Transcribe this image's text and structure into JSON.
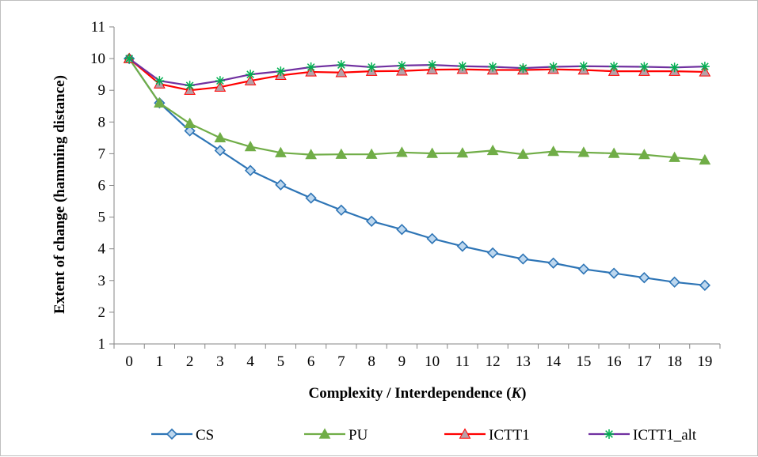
{
  "chart_data": {
    "type": "line",
    "xlabel_main": "Complexity / Interdependence (",
    "xlabel_var": "K",
    "xlabel_close": ")",
    "ylabel": "Extent of change (hamming distance)",
    "x": [
      0,
      1,
      2,
      3,
      4,
      5,
      6,
      7,
      8,
      9,
      10,
      11,
      12,
      13,
      14,
      15,
      16,
      17,
      18,
      19
    ],
    "ylim": [
      1,
      11
    ],
    "yticks": [
      1,
      2,
      3,
      4,
      5,
      6,
      7,
      8,
      9,
      10,
      11
    ],
    "grid": false,
    "legend_position": "bottom",
    "series": [
      {
        "name": "CS",
        "color": "#2e75b6",
        "fill": "#bdd7ee",
        "marker": "diamond",
        "values": [
          10.0,
          8.6,
          7.72,
          7.1,
          6.47,
          6.02,
          5.6,
          5.22,
          4.87,
          4.61,
          4.32,
          4.08,
          3.87,
          3.68,
          3.55,
          3.36,
          3.23,
          3.09,
          2.95,
          2.85
        ]
      },
      {
        "name": "PU",
        "color": "#70ad47",
        "fill": "#70ad47",
        "marker": "triangle",
        "values": [
          10.0,
          8.6,
          7.95,
          7.5,
          7.22,
          7.03,
          6.97,
          6.98,
          6.98,
          7.04,
          7.01,
          7.02,
          7.1,
          6.98,
          7.07,
          7.04,
          7.01,
          6.97,
          6.88,
          6.8
        ]
      },
      {
        "name": "ICTT1",
        "color": "#ff0000",
        "fill": "#b7a0a8",
        "marker": "triangle",
        "values": [
          10.0,
          9.2,
          9.0,
          9.1,
          9.3,
          9.47,
          9.58,
          9.56,
          9.6,
          9.61,
          9.65,
          9.66,
          9.64,
          9.64,
          9.66,
          9.64,
          9.6,
          9.6,
          9.6,
          9.58
        ]
      },
      {
        "name": "ICTT1_alt",
        "color": "#7030a0",
        "fill": "#00b050",
        "marker": "star",
        "values": [
          10.0,
          9.3,
          9.15,
          9.3,
          9.5,
          9.6,
          9.73,
          9.8,
          9.73,
          9.78,
          9.8,
          9.76,
          9.74,
          9.7,
          9.74,
          9.76,
          9.75,
          9.74,
          9.72,
          9.75
        ]
      }
    ]
  }
}
